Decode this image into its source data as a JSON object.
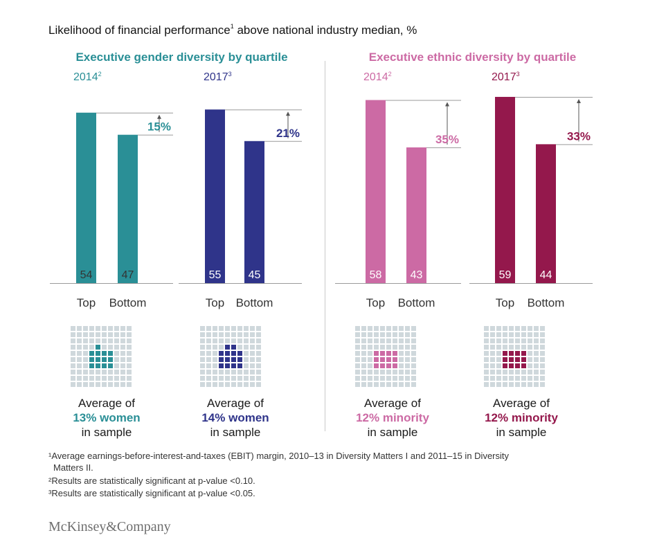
{
  "title": "Likelihood of financial performance",
  "title_sup": "1",
  "title_tail": " above national industry median, %",
  "colors": {
    "gender_2014": "#2a8f96",
    "gender_2017": "#2f348a",
    "ethnic_2014": "#cc6aa4",
    "ethnic_2017": "#94184c",
    "grid_square": "#cfd8dc",
    "axis": "#9a9a9a"
  },
  "groups": [
    {
      "title": "Executive gender diversity by quartile",
      "color": "#2a8f96"
    },
    {
      "title": "Executive ethnic diversity by quartile",
      "color": "#cc6aa4"
    }
  ],
  "panels": [
    {
      "year": "2014",
      "sup": "2",
      "caption_line1": "Average of",
      "caption_line2": "13% women",
      "caption_line3": "in sample"
    },
    {
      "year": "2017",
      "sup": "3",
      "caption_line1": "Average of",
      "caption_line2": "14% women",
      "caption_line3": "in sample"
    },
    {
      "year": "2014",
      "sup": "2",
      "caption_line1": "Average of",
      "caption_line2": "12% minority",
      "caption_line3": "in sample"
    },
    {
      "year": "2017",
      "sup": "3",
      "caption_line1": "Average of",
      "caption_line2": "12% minority",
      "caption_line3": "in sample"
    }
  ],
  "chart_data": [
    {
      "type": "bar",
      "title": "Executive gender diversity by quartile – 2014",
      "categories": [
        "Top",
        "Bottom"
      ],
      "values": [
        54,
        47
      ],
      "difference_label": "15%",
      "color": "#2a8f96",
      "sample_share_percent": 13
    },
    {
      "type": "bar",
      "title": "Executive gender diversity by quartile – 2017",
      "categories": [
        "Top",
        "Bottom"
      ],
      "values": [
        55,
        45
      ],
      "difference_label": "21%",
      "color": "#2f348a",
      "sample_share_percent": 14
    },
    {
      "type": "bar",
      "title": "Executive ethnic diversity by quartile – 2014",
      "categories": [
        "Top",
        "Bottom"
      ],
      "values": [
        58,
        43
      ],
      "difference_label": "35%",
      "color": "#cc6aa4",
      "sample_share_percent": 12
    },
    {
      "type": "bar",
      "title": "Executive ethnic diversity by quartile – 2017",
      "categories": [
        "Top",
        "Bottom"
      ],
      "values": [
        59,
        44
      ],
      "difference_label": "33%",
      "color": "#94184c",
      "sample_share_percent": 12
    }
  ],
  "footnotes": {
    "f1_line1": "¹Average earnings-before-interest-and-taxes (EBIT) margin, 2010–13 in Diversity Matters I and 2011–15 in Diversity",
    "f1_line2": "Matters II.",
    "f2": "²Results are statistically significant at p-value <0.10.",
    "f3": "³Results are statistically significant at p-value <0.05."
  },
  "logo": "McKinsey&Company"
}
